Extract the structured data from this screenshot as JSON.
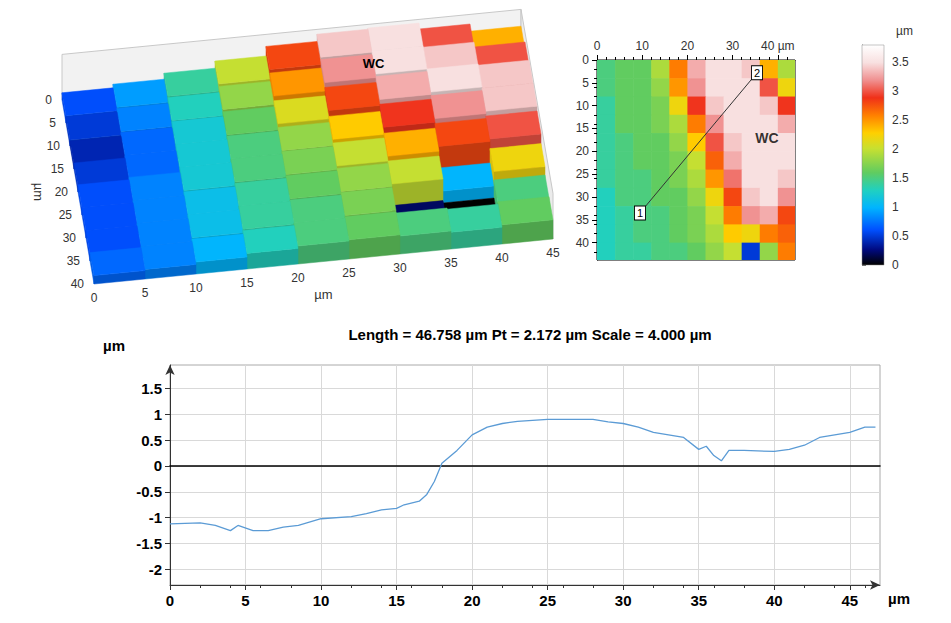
{
  "chart_data": [
    {
      "type": "surface3d",
      "x": [
        2.5,
        7.5,
        12.5,
        17.5,
        22.5,
        27.5,
        32.5,
        37.5,
        42.5
      ],
      "y": [
        2.5,
        7.5,
        12.5,
        17.5,
        22.5,
        27.5,
        32.5,
        37.5
      ],
      "z": [
        [
          0.6,
          0.9,
          1.4,
          2.0,
          2.8,
          3.4,
          3.5,
          3.0,
          2.4
        ],
        [
          0.5,
          0.8,
          1.3,
          1.8,
          2.5,
          3.2,
          3.5,
          3.4,
          3.0
        ],
        [
          0.4,
          0.7,
          1.2,
          1.6,
          2.1,
          2.8,
          3.3,
          3.5,
          3.4
        ],
        [
          0.5,
          0.7,
          1.2,
          1.5,
          1.8,
          2.3,
          2.9,
          3.2,
          3.4
        ],
        [
          0.6,
          0.8,
          1.2,
          1.5,
          1.7,
          2.0,
          2.4,
          2.8,
          3.0
        ],
        [
          0.6,
          0.8,
          1.1,
          1.4,
          1.6,
          1.8,
          2.0,
          1.0,
          2.2
        ],
        [
          0.6,
          0.8,
          1.1,
          1.4,
          1.5,
          1.7,
          0.2,
          0.0,
          1.5
        ],
        [
          0.7,
          0.8,
          1.0,
          1.3,
          1.5,
          1.6,
          1.5,
          1.4,
          1.6
        ]
      ],
      "xlim": [
        0,
        45
      ],
      "ylim": [
        0,
        40
      ],
      "xticks": [
        0,
        5,
        10,
        15,
        20,
        25,
        30,
        35,
        40,
        45
      ],
      "yticks": [
        0,
        5,
        10,
        15,
        20,
        25,
        30,
        35,
        40
      ],
      "xlabel": "µm",
      "ylabel": "µm",
      "annotations": [
        {
          "text": "WC",
          "x": 30,
          "y": 7
        }
      ]
    },
    {
      "type": "heatmap",
      "x": [
        2,
        6,
        10,
        14,
        18,
        22,
        26,
        30,
        34,
        38,
        42
      ],
      "y": [
        2,
        6,
        10,
        14,
        18,
        22,
        26,
        30,
        34,
        38,
        42
      ],
      "z": [
        [
          1.5,
          1.6,
          1.6,
          1.9,
          2.6,
          3.3,
          3.5,
          3.5,
          3.4,
          2.4,
          1.9
        ],
        [
          1.5,
          1.6,
          1.6,
          1.8,
          2.5,
          3.2,
          3.5,
          3.5,
          3.5,
          3.0,
          2.2
        ],
        [
          1.4,
          1.6,
          1.6,
          1.7,
          2.2,
          2.9,
          3.4,
          3.5,
          3.5,
          3.4,
          2.9
        ],
        [
          1.4,
          1.6,
          1.6,
          1.7,
          1.9,
          2.6,
          3.2,
          3.5,
          3.5,
          3.5,
          3.3
        ],
        [
          1.4,
          1.5,
          1.6,
          1.6,
          1.8,
          2.3,
          3.0,
          3.4,
          3.5,
          3.5,
          3.5
        ],
        [
          1.4,
          1.5,
          1.6,
          1.6,
          1.7,
          2.0,
          2.7,
          3.3,
          3.5,
          3.5,
          3.5
        ],
        [
          1.4,
          1.5,
          1.5,
          1.6,
          1.7,
          1.9,
          2.5,
          3.1,
          3.5,
          3.5,
          3.4
        ],
        [
          1.3,
          1.5,
          1.5,
          1.6,
          1.6,
          1.8,
          2.2,
          2.8,
          3.4,
          3.5,
          3.2
        ],
        [
          1.3,
          1.4,
          1.5,
          1.5,
          1.6,
          1.7,
          2.0,
          2.6,
          3.2,
          3.3,
          2.8
        ],
        [
          1.3,
          1.4,
          1.5,
          1.5,
          1.6,
          1.7,
          1.9,
          2.3,
          2.2,
          2.6,
          2.7
        ],
        [
          1.3,
          1.4,
          1.4,
          1.5,
          1.5,
          1.6,
          1.8,
          2.0,
          0.5,
          1.8,
          2.6
        ]
      ],
      "xlim": [
        0,
        43.8
      ],
      "ylim": [
        0,
        43.8
      ],
      "xticks": [
        0,
        10,
        20,
        30,
        {
          "value": 40,
          "label": "40 µm"
        }
      ],
      "yticks": [
        0,
        5,
        10,
        15,
        20,
        25,
        30,
        35,
        40
      ],
      "annotations": [
        {
          "text": "WC",
          "x": 37.6,
          "y": 17
        }
      ],
      "profile_line": {
        "start": [
          9.5,
          33.5
        ],
        "end": [
          35.4,
          2.8
        ],
        "labels": [
          "1",
          "2"
        ]
      },
      "colorbar": {
        "label": "µm",
        "range": [
          0,
          3.8
        ],
        "ticks": [
          0,
          0.5,
          1,
          1.5,
          2,
          2.5,
          3,
          3.5
        ]
      }
    },
    {
      "type": "line",
      "title": "Length = 46.758 µm Pt = 2.172 µm Scale = 4.000 µm",
      "x": [
        0,
        2,
        3,
        4,
        4.5,
        5.5,
        6.5,
        7.5,
        8.5,
        10,
        12,
        13,
        14,
        15,
        15.5,
        16.5,
        17,
        17.5,
        18,
        19,
        20,
        21,
        22,
        23,
        24,
        25,
        28,
        29,
        30,
        31,
        32,
        33,
        34,
        35,
        35.5,
        36,
        36.5,
        37,
        38,
        40,
        41,
        42,
        43,
        44,
        45,
        46,
        46.7
      ],
      "values": [
        -1.12,
        -1.1,
        -1.15,
        -1.25,
        -1.15,
        -1.25,
        -1.25,
        -1.18,
        -1.15,
        -1.02,
        -0.98,
        -0.92,
        -0.85,
        -0.82,
        -0.75,
        -0.68,
        -0.55,
        -0.3,
        0.05,
        0.3,
        0.6,
        0.75,
        0.82,
        0.86,
        0.88,
        0.9,
        0.9,
        0.85,
        0.82,
        0.75,
        0.65,
        0.6,
        0.55,
        0.32,
        0.38,
        0.2,
        0.1,
        0.3,
        0.3,
        0.28,
        0.32,
        0.4,
        0.55,
        0.6,
        0.65,
        0.75,
        0.75
      ],
      "color": "#5b9bd5",
      "xlim": [
        0,
        47
      ],
      "ylim": [
        -2.3,
        1.95
      ],
      "xticks": [
        0,
        5,
        10,
        15,
        20,
        25,
        30,
        35,
        40,
        45
      ],
      "yticks": [
        -2,
        -1.5,
        -1,
        -0.5,
        0,
        0.5,
        1,
        1.5
      ],
      "xlabel": "µm",
      "ylabel": "µm",
      "grid": true
    }
  ]
}
